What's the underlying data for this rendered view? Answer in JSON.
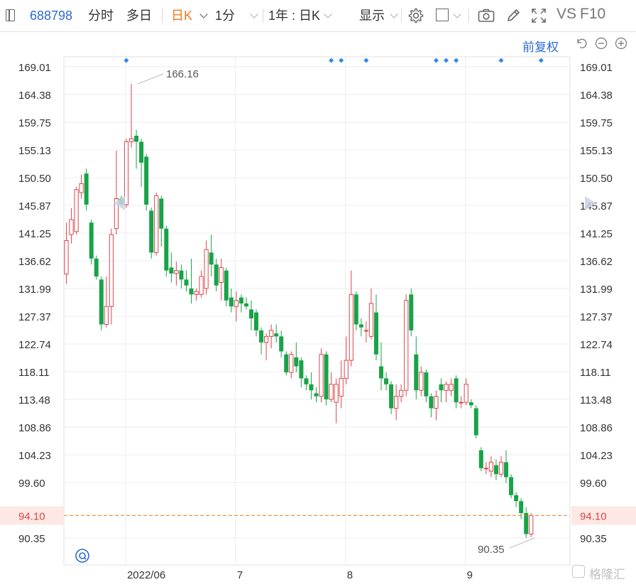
{
  "toolbar": {
    "code": "688798",
    "intraday": "分时",
    "multiday": "多日",
    "daily_k": "日K",
    "minute": "1分",
    "period": "1年 : 日K",
    "display": "显示",
    "vs": "VS",
    "f10": "F10"
  },
  "adjust": {
    "label": "前复权"
  },
  "colors": {
    "up": "#d9464c",
    "down": "#18a348",
    "accent": "#2e6bd2",
    "current_line": "#f07a1b",
    "grid": "#ececec",
    "highlight_bg": "#fde8e3",
    "highlight_text": "#d9464c"
  },
  "icons": [
    "sidebar-icon",
    "settings-gear-icon",
    "checkbox-icon",
    "camera-icon",
    "pencil-icon",
    "fullscreen-icon",
    "undo-icon",
    "zoom-out-icon",
    "zoom-in-icon",
    "search-circle-icon",
    "left-arrow-icon",
    "right-arrow-icon"
  ],
  "watermark": {
    "text": "格隆汇"
  },
  "chart_data": {
    "type": "candlestick",
    "y_ticks": [
      "169.01",
      "164.38",
      "159.75",
      "155.13",
      "150.50",
      "145.87",
      "141.25",
      "136.62",
      "131.99",
      "127.37",
      "122.74",
      "118.11",
      "113.48",
      "108.86",
      "104.23",
      "99.60",
      "94.10",
      "90.35"
    ],
    "ylim": [
      88.5,
      171.0
    ],
    "x_labels": [
      {
        "label": "2022/06",
        "index": 11.5
      },
      {
        "label": "7",
        "index": 33.5
      },
      {
        "label": "8",
        "index": 55.5
      },
      {
        "label": "9",
        "index": 79.5
      }
    ],
    "current_price": 94.1,
    "max_annotation": {
      "label": "166.16",
      "value": 166.16,
      "index": 14
    },
    "min_annotation": {
      "label": "90.35",
      "value": 90.35,
      "index": 94
    },
    "event_marker_indices": [
      12,
      53,
      55,
      60,
      74,
      76,
      78,
      87,
      95
    ],
    "candles": [
      {
        "o": 134.4,
        "h": 143.0,
        "l": 132.8,
        "c": 140.0
      },
      {
        "o": 141.0,
        "h": 145.4,
        "l": 139.5,
        "c": 143.5
      },
      {
        "o": 141.5,
        "h": 149.0,
        "l": 141.0,
        "c": 148.5
      },
      {
        "o": 148.0,
        "h": 151.0,
        "l": 147.0,
        "c": 149.5
      },
      {
        "o": 151.2,
        "h": 152.0,
        "l": 145.0,
        "c": 146.0
      },
      {
        "o": 143.0,
        "h": 143.5,
        "l": 136.0,
        "c": 137.0
      },
      {
        "o": 137.0,
        "h": 137.5,
        "l": 133.5,
        "c": 134.0
      },
      {
        "o": 133.5,
        "h": 134.0,
        "l": 125.0,
        "c": 126.0
      },
      {
        "o": 126.0,
        "h": 134.0,
        "l": 125.5,
        "c": 129.0
      },
      {
        "o": 129.0,
        "h": 142.0,
        "l": 126.0,
        "c": 141.0
      },
      {
        "o": 142.0,
        "h": 155.0,
        "l": 141.0,
        "c": 147.0
      },
      {
        "o": 147.0,
        "h": 147.5,
        "l": 146.0,
        "c": 146.0
      },
      {
        "o": 146.0,
        "h": 157.0,
        "l": 145.5,
        "c": 156.5
      },
      {
        "o": 156.5,
        "h": 166.16,
        "l": 155.5,
        "c": 157.0
      },
      {
        "o": 157.5,
        "h": 158.5,
        "l": 152.0,
        "c": 156.5
      },
      {
        "o": 156.5,
        "h": 157.0,
        "l": 149.0,
        "c": 153.0
      },
      {
        "o": 154.0,
        "h": 154.5,
        "l": 145.0,
        "c": 146.0
      },
      {
        "o": 145.0,
        "h": 145.5,
        "l": 137.0,
        "c": 138.0
      },
      {
        "o": 138.0,
        "h": 148.0,
        "l": 137.5,
        "c": 147.5
      },
      {
        "o": 147.0,
        "h": 147.5,
        "l": 139.0,
        "c": 142.0
      },
      {
        "o": 142.0,
        "h": 142.5,
        "l": 134.0,
        "c": 135.0
      },
      {
        "o": 135.5,
        "h": 138.0,
        "l": 133.0,
        "c": 134.5
      },
      {
        "o": 134.5,
        "h": 136.5,
        "l": 132.5,
        "c": 135.0
      },
      {
        "o": 135.0,
        "h": 136.0,
        "l": 132.0,
        "c": 133.5
      },
      {
        "o": 133.5,
        "h": 135.0,
        "l": 131.5,
        "c": 132.5
      },
      {
        "o": 132.0,
        "h": 137.0,
        "l": 129.5,
        "c": 131.0
      },
      {
        "o": 131.0,
        "h": 132.0,
        "l": 130.0,
        "c": 131.5
      },
      {
        "o": 131.0,
        "h": 135.0,
        "l": 130.5,
        "c": 134.0
      },
      {
        "o": 132.0,
        "h": 140.0,
        "l": 131.0,
        "c": 138.5
      },
      {
        "o": 138.0,
        "h": 141.0,
        "l": 134.0,
        "c": 136.0
      },
      {
        "o": 136.0,
        "h": 137.0,
        "l": 131.5,
        "c": 132.5
      },
      {
        "o": 133.0,
        "h": 137.0,
        "l": 130.0,
        "c": 135.5
      },
      {
        "o": 135.0,
        "h": 135.5,
        "l": 129.0,
        "c": 130.0
      },
      {
        "o": 130.5,
        "h": 132.0,
        "l": 128.0,
        "c": 129.0
      },
      {
        "o": 129.0,
        "h": 131.5,
        "l": 126.5,
        "c": 130.0
      },
      {
        "o": 130.5,
        "h": 131.0,
        "l": 128.0,
        "c": 129.5
      },
      {
        "o": 129.5,
        "h": 130.5,
        "l": 128.5,
        "c": 129.0
      },
      {
        "o": 128.5,
        "h": 130.0,
        "l": 125.0,
        "c": 127.0
      },
      {
        "o": 128.0,
        "h": 128.5,
        "l": 124.0,
        "c": 125.0
      },
      {
        "o": 125.0,
        "h": 125.5,
        "l": 121.0,
        "c": 123.0
      },
      {
        "o": 123.0,
        "h": 124.5,
        "l": 120.0,
        "c": 124.0
      },
      {
        "o": 124.0,
        "h": 126.0,
        "l": 122.0,
        "c": 125.0
      },
      {
        "o": 124.5,
        "h": 126.0,
        "l": 123.0,
        "c": 124.0
      },
      {
        "o": 124.0,
        "h": 125.0,
        "l": 120.5,
        "c": 121.5
      },
      {
        "o": 121.0,
        "h": 121.5,
        "l": 117.5,
        "c": 118.0
      },
      {
        "o": 118.0,
        "h": 121.5,
        "l": 117.0,
        "c": 121.0
      },
      {
        "o": 120.5,
        "h": 123.0,
        "l": 118.0,
        "c": 119.0
      },
      {
        "o": 120.0,
        "h": 120.5,
        "l": 115.5,
        "c": 117.0
      },
      {
        "o": 117.0,
        "h": 117.5,
        "l": 115.0,
        "c": 116.0
      },
      {
        "o": 116.0,
        "h": 118.0,
        "l": 113.5,
        "c": 115.0
      },
      {
        "o": 114.5,
        "h": 115.5,
        "l": 113.0,
        "c": 114.0
      },
      {
        "o": 114.0,
        "h": 122.0,
        "l": 113.0,
        "c": 121.0
      },
      {
        "o": 121.0,
        "h": 121.5,
        "l": 112.5,
        "c": 113.5
      },
      {
        "o": 113.5,
        "h": 118.0,
        "l": 113.0,
        "c": 116.0
      },
      {
        "o": 113.0,
        "h": 117.0,
        "l": 109.5,
        "c": 116.0
      },
      {
        "o": 114.0,
        "h": 120.0,
        "l": 112.0,
        "c": 117.0
      },
      {
        "o": 117.0,
        "h": 124.0,
        "l": 116.0,
        "c": 120.0
      },
      {
        "o": 120.0,
        "h": 135.0,
        "l": 119.0,
        "c": 131.0
      },
      {
        "o": 131.0,
        "h": 131.5,
        "l": 125.0,
        "c": 126.0
      },
      {
        "o": 126.0,
        "h": 127.0,
        "l": 124.0,
        "c": 125.5
      },
      {
        "o": 125.0,
        "h": 126.5,
        "l": 123.0,
        "c": 125.0
      },
      {
        "o": 124.0,
        "h": 132.0,
        "l": 123.5,
        "c": 129.5
      },
      {
        "o": 128.0,
        "h": 131.0,
        "l": 120.0,
        "c": 121.0
      },
      {
        "o": 119.0,
        "h": 123.0,
        "l": 115.0,
        "c": 117.0
      },
      {
        "o": 117.0,
        "h": 118.0,
        "l": 115.0,
        "c": 116.0
      },
      {
        "o": 116.0,
        "h": 116.5,
        "l": 111.0,
        "c": 112.0
      },
      {
        "o": 112.0,
        "h": 116.0,
        "l": 110.0,
        "c": 114.0
      },
      {
        "o": 114.0,
        "h": 116.0,
        "l": 113.0,
        "c": 115.0
      },
      {
        "o": 115.0,
        "h": 131.0,
        "l": 114.0,
        "c": 130.0
      },
      {
        "o": 131.0,
        "h": 132.0,
        "l": 124.0,
        "c": 125.0
      },
      {
        "o": 121.0,
        "h": 124.0,
        "l": 113.5,
        "c": 115.0
      },
      {
        "o": 115.0,
        "h": 119.0,
        "l": 114.0,
        "c": 118.0
      },
      {
        "o": 118.0,
        "h": 118.5,
        "l": 113.0,
        "c": 114.0
      },
      {
        "o": 114.0,
        "h": 114.5,
        "l": 110.5,
        "c": 112.0
      },
      {
        "o": 112.0,
        "h": 115.0,
        "l": 110.0,
        "c": 114.0
      },
      {
        "o": 116.0,
        "h": 117.0,
        "l": 113.0,
        "c": 115.0
      },
      {
        "o": 115.0,
        "h": 116.5,
        "l": 113.0,
        "c": 116.0
      },
      {
        "o": 115.0,
        "h": 117.0,
        "l": 114.0,
        "c": 116.0
      },
      {
        "o": 117.0,
        "h": 117.5,
        "l": 112.0,
        "c": 113.0
      },
      {
        "o": 113.0,
        "h": 114.0,
        "l": 112.0,
        "c": 113.0
      },
      {
        "o": 113.0,
        "h": 117.0,
        "l": 112.5,
        "c": 116.0
      },
      {
        "o": 113.0,
        "h": 113.5,
        "l": 112.0,
        "c": 112.5
      },
      {
        "o": 112.0,
        "h": 112.5,
        "l": 107.0,
        "c": 107.5
      },
      {
        "o": 105.0,
        "h": 105.5,
        "l": 101.5,
        "c": 102.0
      },
      {
        "o": 102.0,
        "h": 103.0,
        "l": 101.0,
        "c": 102.0
      },
      {
        "o": 101.5,
        "h": 104.0,
        "l": 100.5,
        "c": 103.0
      },
      {
        "o": 102.5,
        "h": 103.5,
        "l": 100.0,
        "c": 101.0
      },
      {
        "o": 101.0,
        "h": 104.0,
        "l": 100.5,
        "c": 103.0
      },
      {
        "o": 103.0,
        "h": 105.0,
        "l": 99.5,
        "c": 100.5
      },
      {
        "o": 100.5,
        "h": 101.0,
        "l": 97.0,
        "c": 97.5
      },
      {
        "o": 97.5,
        "h": 98.0,
        "l": 95.5,
        "c": 96.5
      },
      {
        "o": 96.5,
        "h": 97.0,
        "l": 93.5,
        "c": 94.5
      },
      {
        "o": 94.5,
        "h": 95.5,
        "l": 90.35,
        "c": 91.0
      },
      {
        "o": 91.0,
        "h": 94.5,
        "l": 90.5,
        "c": 94.1
      }
    ]
  }
}
